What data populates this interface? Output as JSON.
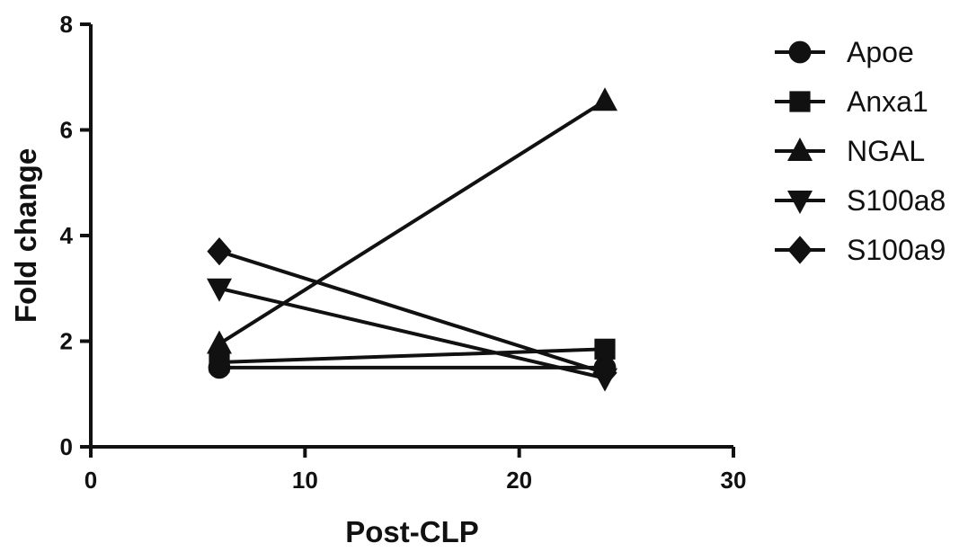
{
  "chart_data": {
    "type": "line",
    "title": "",
    "xlabel": "Post-CLP",
    "ylabel": "Fold change",
    "xlim": [
      0,
      30
    ],
    "ylim": [
      0,
      8
    ],
    "x_ticks": [
      0,
      10,
      20,
      30
    ],
    "y_ticks": [
      0,
      2,
      4,
      6,
      8
    ],
    "grid": false,
    "legend_position": "right",
    "x": [
      6,
      24
    ],
    "series": [
      {
        "name": "Apoe",
        "marker": "circle",
        "values": [
          1.5,
          1.5
        ]
      },
      {
        "name": "Anxa1",
        "marker": "square",
        "values": [
          1.6,
          1.85
        ]
      },
      {
        "name": "NGAL",
        "marker": "triangle-up",
        "values": [
          1.95,
          6.55
        ]
      },
      {
        "name": "S100a8",
        "marker": "triangle-down",
        "values": [
          3.0,
          1.3
        ]
      },
      {
        "name": "S100a9",
        "marker": "diamond",
        "values": [
          3.7,
          1.4
        ]
      }
    ],
    "colors": {
      "line": "#111111",
      "marker": "#111111"
    }
  }
}
